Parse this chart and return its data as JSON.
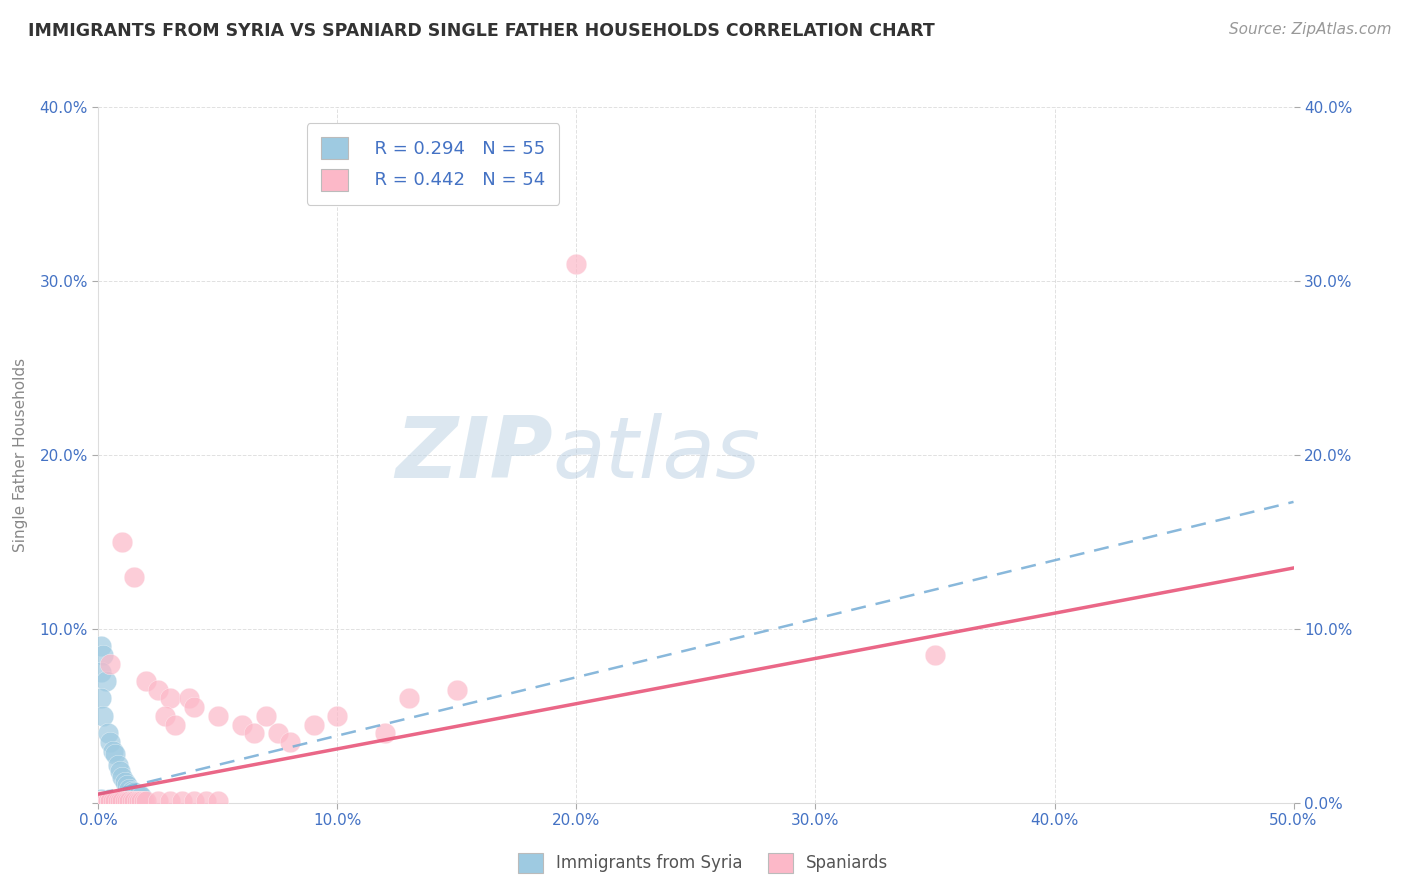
{
  "title": "IMMIGRANTS FROM SYRIA VS SPANIARD SINGLE FATHER HOUSEHOLDS CORRELATION CHART",
  "source": "Source: ZipAtlas.com",
  "ylabel": "Single Father Households",
  "xlim": [
    0.0,
    0.5
  ],
  "ylim": [
    0.0,
    0.4
  ],
  "xticks": [
    0.0,
    0.1,
    0.2,
    0.3,
    0.4,
    0.5
  ],
  "yticks": [
    0.0,
    0.1,
    0.2,
    0.3,
    0.4
  ],
  "xticklabels": [
    "0.0%",
    "10.0%",
    "20.0%",
    "30.0%",
    "40.0%",
    "50.0%"
  ],
  "yticklabels": [
    "",
    "10.0%",
    "20.0%",
    "30.0%",
    "40.0%"
  ],
  "right_yticklabels": [
    "0.0%",
    "10.0%",
    "20.0%",
    "30.0%",
    "40.0%"
  ],
  "legend1_label": "Immigrants from Syria",
  "legend2_label": "Spaniards",
  "r1": 0.294,
  "n1": 55,
  "r2": 0.442,
  "n2": 54,
  "blue_color": "#9ecae1",
  "pink_color": "#fcb8c8",
  "blue_line_color": "#74acd5",
  "pink_line_color": "#e8567a",
  "watermark_zip": "#c5d8e8",
  "watermark_atlas": "#b8cfe0",
  "background_color": "#ffffff",
  "grid_color": "#cccccc",
  "title_color": "#333333",
  "axis_label_color": "#888888",
  "tick_color": "#4472c4",
  "blue_points": [
    [
      0.001,
      0.001
    ],
    [
      0.001,
      0.002
    ],
    [
      0.001,
      0.001
    ],
    [
      0.001,
      0.001
    ],
    [
      0.002,
      0.001
    ],
    [
      0.002,
      0.001
    ],
    [
      0.002,
      0.001
    ],
    [
      0.002,
      0.001
    ],
    [
      0.003,
      0.001
    ],
    [
      0.003,
      0.001
    ],
    [
      0.003,
      0.001
    ],
    [
      0.003,
      0.001
    ],
    [
      0.004,
      0.001
    ],
    [
      0.004,
      0.001
    ],
    [
      0.005,
      0.001
    ],
    [
      0.005,
      0.002
    ],
    [
      0.005,
      0.001
    ],
    [
      0.006,
      0.001
    ],
    [
      0.006,
      0.001
    ],
    [
      0.007,
      0.001
    ],
    [
      0.007,
      0.001
    ],
    [
      0.008,
      0.001
    ],
    [
      0.009,
      0.001
    ],
    [
      0.009,
      0.002
    ],
    [
      0.01,
      0.001
    ],
    [
      0.01,
      0.001
    ],
    [
      0.011,
      0.001
    ],
    [
      0.011,
      0.001
    ],
    [
      0.012,
      0.001
    ],
    [
      0.013,
      0.001
    ],
    [
      0.014,
      0.001
    ],
    [
      0.015,
      0.001
    ],
    [
      0.016,
      0.002
    ],
    [
      0.017,
      0.001
    ],
    [
      0.001,
      0.09
    ],
    [
      0.002,
      0.085
    ],
    [
      0.001,
      0.075
    ],
    [
      0.003,
      0.07
    ],
    [
      0.001,
      0.06
    ],
    [
      0.002,
      0.05
    ],
    [
      0.004,
      0.04
    ],
    [
      0.005,
      0.035
    ],
    [
      0.006,
      0.03
    ],
    [
      0.007,
      0.028
    ],
    [
      0.008,
      0.022
    ],
    [
      0.009,
      0.018
    ],
    [
      0.01,
      0.015
    ],
    [
      0.011,
      0.012
    ],
    [
      0.012,
      0.01
    ],
    [
      0.013,
      0.008
    ],
    [
      0.014,
      0.007
    ],
    [
      0.015,
      0.006
    ],
    [
      0.016,
      0.005
    ],
    [
      0.017,
      0.005
    ],
    [
      0.018,
      0.004
    ]
  ],
  "pink_points": [
    [
      0.001,
      0.001
    ],
    [
      0.001,
      0.001
    ],
    [
      0.002,
      0.001
    ],
    [
      0.002,
      0.001
    ],
    [
      0.003,
      0.001
    ],
    [
      0.003,
      0.001
    ],
    [
      0.004,
      0.001
    ],
    [
      0.004,
      0.001
    ],
    [
      0.005,
      0.001
    ],
    [
      0.005,
      0.001
    ],
    [
      0.006,
      0.001
    ],
    [
      0.007,
      0.001
    ],
    [
      0.008,
      0.001
    ],
    [
      0.009,
      0.001
    ],
    [
      0.01,
      0.001
    ],
    [
      0.011,
      0.001
    ],
    [
      0.012,
      0.001
    ],
    [
      0.013,
      0.001
    ],
    [
      0.014,
      0.001
    ],
    [
      0.015,
      0.001
    ],
    [
      0.016,
      0.001
    ],
    [
      0.017,
      0.001
    ],
    [
      0.018,
      0.001
    ],
    [
      0.019,
      0.001
    ],
    [
      0.02,
      0.001
    ],
    [
      0.025,
      0.001
    ],
    [
      0.03,
      0.001
    ],
    [
      0.035,
      0.001
    ],
    [
      0.04,
      0.001
    ],
    [
      0.045,
      0.001
    ],
    [
      0.05,
      0.001
    ],
    [
      0.005,
      0.08
    ],
    [
      0.01,
      0.15
    ],
    [
      0.015,
      0.13
    ],
    [
      0.02,
      0.07
    ],
    [
      0.025,
      0.065
    ],
    [
      0.03,
      0.06
    ],
    [
      0.028,
      0.05
    ],
    [
      0.032,
      0.045
    ],
    [
      0.038,
      0.06
    ],
    [
      0.04,
      0.055
    ],
    [
      0.05,
      0.05
    ],
    [
      0.06,
      0.045
    ],
    [
      0.065,
      0.04
    ],
    [
      0.07,
      0.05
    ],
    [
      0.075,
      0.04
    ],
    [
      0.08,
      0.035
    ],
    [
      0.09,
      0.045
    ],
    [
      0.1,
      0.05
    ],
    [
      0.12,
      0.04
    ],
    [
      0.13,
      0.06
    ],
    [
      0.15,
      0.065
    ],
    [
      0.2,
      0.31
    ],
    [
      0.35,
      0.085
    ]
  ],
  "blue_trend": [
    0.0,
    0.5,
    0.005,
    0.173
  ],
  "pink_trend": [
    0.0,
    0.5,
    0.005,
    0.135
  ]
}
